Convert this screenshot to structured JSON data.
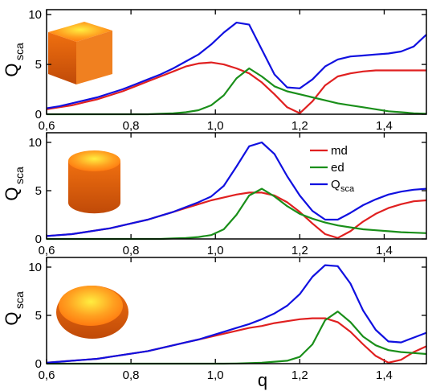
{
  "chart_data": [
    {
      "type": "line",
      "ylabel": "Q",
      "ylabel_sub": "sca",
      "x": [
        0.6,
        0.63,
        0.66,
        0.69,
        0.72,
        0.75,
        0.78,
        0.81,
        0.84,
        0.87,
        0.9,
        0.93,
        0.96,
        0.99,
        1.02,
        1.05,
        1.08,
        1.11,
        1.14,
        1.17,
        1.2,
        1.23,
        1.26,
        1.29,
        1.32,
        1.35,
        1.38,
        1.41,
        1.44,
        1.47,
        1.5
      ],
      "series": [
        {
          "name": "md",
          "color": "#e02020",
          "values": [
            0.5,
            0.7,
            0.9,
            1.2,
            1.5,
            1.9,
            2.3,
            2.8,
            3.3,
            3.8,
            4.3,
            4.8,
            5.1,
            5.2,
            5.0,
            4.6,
            4.1,
            3.2,
            2.0,
            0.7,
            0.1,
            1.3,
            2.9,
            3.8,
            4.1,
            4.3,
            4.4,
            4.4,
            4.4,
            4.4,
            4.4
          ]
        },
        {
          "name": "ed",
          "color": "#1a8f1a",
          "values": [
            0,
            0,
            0,
            0,
            0,
            0,
            0,
            0,
            0,
            0.05,
            0.1,
            0.2,
            0.4,
            0.9,
            1.9,
            3.6,
            4.6,
            3.8,
            2.8,
            2.3,
            2.0,
            1.7,
            1.4,
            1.1,
            0.9,
            0.7,
            0.5,
            0.3,
            0.2,
            0.1,
            0.05
          ]
        },
        {
          "name": "Q",
          "name_sub": "sca",
          "color": "#1010e0",
          "values": [
            0.6,
            0.8,
            1.1,
            1.4,
            1.7,
            2.1,
            2.5,
            3.0,
            3.5,
            4.0,
            4.6,
            5.3,
            6.0,
            7.0,
            8.2,
            9.2,
            9.0,
            6.5,
            4.0,
            2.7,
            2.6,
            3.5,
            4.8,
            5.5,
            5.8,
            5.9,
            6.0,
            6.1,
            6.3,
            6.8,
            8.0
          ]
        }
      ],
      "xlim": [
        0.6,
        1.5
      ],
      "ylim": [
        0,
        10.5
      ],
      "xticks": [
        {
          "value": 0.6,
          "label": "0,6"
        },
        {
          "value": 0.8,
          "label": "0,8"
        },
        {
          "value": 1.0,
          "label": "1,0"
        },
        {
          "value": 1.2,
          "label": "1,2"
        },
        {
          "value": 1.4,
          "label": "1,4"
        }
      ],
      "yticks": [
        0,
        5,
        10
      ],
      "legend": false
    },
    {
      "type": "line",
      "ylabel": "Q",
      "ylabel_sub": "sca",
      "x": [
        0.6,
        0.63,
        0.66,
        0.69,
        0.72,
        0.75,
        0.78,
        0.81,
        0.84,
        0.87,
        0.9,
        0.93,
        0.96,
        0.99,
        1.02,
        1.05,
        1.08,
        1.11,
        1.14,
        1.17,
        1.2,
        1.23,
        1.26,
        1.29,
        1.32,
        1.35,
        1.38,
        1.41,
        1.44,
        1.47,
        1.5
      ],
      "series": [
        {
          "name": "md",
          "color": "#e02020",
          "values": [
            0.3,
            0.4,
            0.5,
            0.7,
            0.9,
            1.1,
            1.4,
            1.7,
            2.0,
            2.4,
            2.8,
            3.2,
            3.6,
            4.0,
            4.3,
            4.6,
            4.8,
            4.8,
            4.5,
            3.8,
            2.8,
            1.6,
            0.5,
            0.1,
            0.8,
            1.8,
            2.6,
            3.2,
            3.6,
            3.9,
            4.0
          ]
        },
        {
          "name": "ed",
          "color": "#1a8f1a",
          "values": [
            0,
            0,
            0,
            0,
            0,
            0,
            0,
            0,
            0,
            0,
            0.05,
            0.1,
            0.2,
            0.4,
            1.0,
            2.5,
            4.5,
            5.2,
            4.4,
            3.4,
            2.6,
            2.1,
            1.7,
            1.4,
            1.2,
            1.0,
            0.9,
            0.8,
            0.7,
            0.65,
            0.6
          ]
        },
        {
          "name": "Q",
          "name_sub": "sca",
          "color": "#1010e0",
          "values": [
            0.3,
            0.4,
            0.5,
            0.7,
            0.9,
            1.1,
            1.4,
            1.7,
            2.0,
            2.4,
            2.8,
            3.3,
            3.8,
            4.4,
            5.5,
            7.5,
            9.6,
            10.0,
            8.8,
            6.5,
            4.5,
            2.9,
            2.0,
            2.0,
            2.7,
            3.5,
            4.1,
            4.6,
            4.9,
            5.1,
            5.2
          ]
        }
      ],
      "xlim": [
        0.6,
        1.5
      ],
      "ylim": [
        0,
        11
      ],
      "xticks": [
        {
          "value": 0.6,
          "label": "0,6"
        },
        {
          "value": 0.8,
          "label": "0,8"
        },
        {
          "value": 1.0,
          "label": "1,0"
        },
        {
          "value": 1.2,
          "label": "1,2"
        },
        {
          "value": 1.4,
          "label": "1,4"
        }
      ],
      "yticks": [
        0,
        5,
        10
      ],
      "legend": true
    },
    {
      "type": "line",
      "ylabel": "Q",
      "ylabel_sub": "sca",
      "xlabel": "q",
      "x": [
        0.6,
        0.63,
        0.66,
        0.69,
        0.72,
        0.75,
        0.78,
        0.81,
        0.84,
        0.87,
        0.9,
        0.93,
        0.96,
        0.99,
        1.02,
        1.05,
        1.08,
        1.11,
        1.14,
        1.17,
        1.2,
        1.23,
        1.26,
        1.29,
        1.32,
        1.35,
        1.38,
        1.41,
        1.44,
        1.47,
        1.5
      ],
      "series": [
        {
          "name": "md",
          "color": "#e02020",
          "values": [
            0.1,
            0.2,
            0.3,
            0.4,
            0.5,
            0.7,
            0.9,
            1.1,
            1.3,
            1.6,
            1.9,
            2.2,
            2.5,
            2.8,
            3.1,
            3.4,
            3.7,
            3.9,
            4.2,
            4.4,
            4.6,
            4.7,
            4.7,
            4.3,
            3.3,
            2.0,
            0.8,
            0.1,
            0.4,
            1.2,
            1.8
          ]
        },
        {
          "name": "ed",
          "color": "#1a8f1a",
          "values": [
            0,
            0,
            0,
            0,
            0,
            0,
            0,
            0,
            0,
            0,
            0,
            0,
            0,
            0,
            0,
            0.02,
            0.05,
            0.1,
            0.2,
            0.3,
            0.7,
            2.0,
            4.5,
            5.4,
            4.3,
            2.8,
            1.9,
            1.4,
            1.2,
            1.1,
            1.0
          ]
        },
        {
          "name": "Q",
          "name_sub": "sca",
          "color": "#1010e0",
          "values": [
            0.1,
            0.2,
            0.3,
            0.4,
            0.5,
            0.7,
            0.9,
            1.1,
            1.3,
            1.6,
            1.9,
            2.2,
            2.5,
            2.9,
            3.3,
            3.7,
            4.1,
            4.6,
            5.2,
            6.0,
            7.2,
            9.0,
            10.2,
            10.1,
            8.3,
            5.5,
            3.5,
            2.3,
            2.2,
            2.7,
            3.2
          ]
        }
      ],
      "xlim": [
        0.6,
        1.5
      ],
      "ylim": [
        0,
        11
      ],
      "xticks": [
        {
          "value": 0.6,
          "label": "0,6"
        },
        {
          "value": 0.8,
          "label": "0,8"
        },
        {
          "value": 1.0,
          "label": "1,0"
        },
        {
          "value": 1.2,
          "label": "1,2"
        },
        {
          "value": 1.4,
          "label": "1,4"
        }
      ],
      "yticks": [
        0,
        5,
        10
      ],
      "legend": false
    }
  ]
}
